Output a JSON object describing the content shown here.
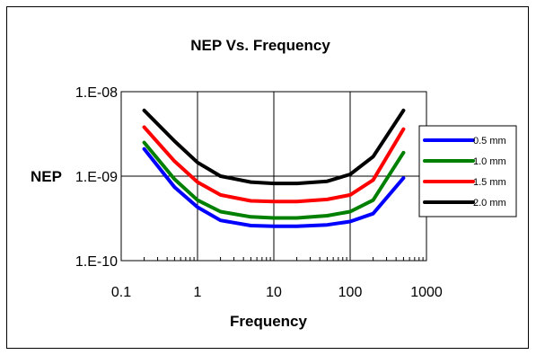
{
  "chart_data": {
    "type": "line",
    "title": "NEP Vs. Frequency",
    "xlabel": "Frequency",
    "ylabel": "NEP",
    "xscale": "log",
    "yscale": "log",
    "xlim": [
      0.1,
      1000
    ],
    "ylim": [
      1e-10,
      1e-08
    ],
    "x_ticks": [
      {
        "value": 0.1,
        "label": "0.1"
      },
      {
        "value": 1,
        "label": "1"
      },
      {
        "value": 10,
        "label": "10"
      },
      {
        "value": 100,
        "label": "100"
      },
      {
        "value": 1000,
        "label": "1000"
      }
    ],
    "y_ticks": [
      {
        "value": 1e-10,
        "label": "1.E-10"
      },
      {
        "value": 1e-09,
        "label": "1.E-09"
      },
      {
        "value": 1e-08,
        "label": "1.E-08"
      }
    ],
    "grid": "vertical major gridlines and horizontal major gridlines",
    "legend_position": "right",
    "x": [
      0.2,
      0.5,
      1,
      2,
      5,
      10,
      20,
      50,
      100,
      200,
      500
    ],
    "series": [
      {
        "name": "0.5 mm",
        "color": "#0000ff",
        "values": [
          2.1e-09,
          7.4e-10,
          4.3e-10,
          3e-10,
          2.6e-10,
          2.55e-10,
          2.55e-10,
          2.65e-10,
          2.9e-10,
          3.6e-10,
          9.5e-10
        ]
      },
      {
        "name": "1.0 mm",
        "color": "#008000",
        "values": [
          2.5e-09,
          9.2e-10,
          5.2e-10,
          3.8e-10,
          3.3e-10,
          3.2e-10,
          3.2e-10,
          3.4e-10,
          3.8e-10,
          5.2e-10,
          1.9e-09
        ]
      },
      {
        "name": "1.5 mm",
        "color": "#ff0000",
        "values": [
          3.8e-09,
          1.5e-09,
          8.5e-10,
          6e-10,
          5.1e-10,
          5e-10,
          5e-10,
          5.3e-10,
          6e-10,
          9e-10,
          3.6e-09
        ]
      },
      {
        "name": "2.0 mm",
        "color": "#000000",
        "values": [
          6e-09,
          2.6e-09,
          1.45e-09,
          1e-09,
          8.5e-10,
          8.2e-10,
          8.2e-10,
          8.7e-10,
          1.05e-09,
          1.7e-09,
          6e-09
        ]
      }
    ]
  }
}
